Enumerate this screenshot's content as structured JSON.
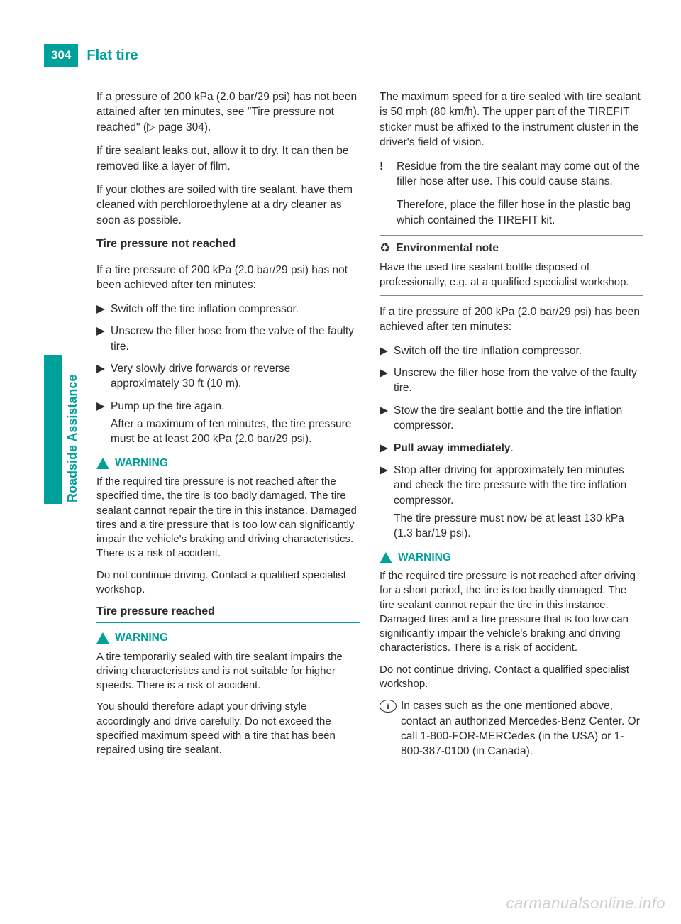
{
  "header": {
    "page_number": "304",
    "title": "Flat tire"
  },
  "side": {
    "label": "Roadside Assistance"
  },
  "left": {
    "p1": "If a pressure of 200 kPa (2.0 bar/29 psi) has not been attained after ten minutes, see \"Tire pressure not reached\" (▷ page 304).",
    "p2": "If tire sealant leaks out, allow it to dry. It can then be removed like a layer of film.",
    "p3": "If your clothes are soiled with tire sealant, have them cleaned with perchloroethylene at a dry cleaner as soon as possible.",
    "h1": "Tire pressure not reached",
    "p4": "If a tire pressure of 200 kPa (2.0 bar/29 psi) has not been achieved after ten minutes:",
    "s1": "Switch off the tire inflation compressor.",
    "s2": "Unscrew the filler hose from the valve of the faulty tire.",
    "s3": "Very slowly drive forwards or reverse approximately 30 ft (10 m).",
    "s4": "Pump up the tire again.",
    "s4b": "After a maximum of ten minutes, the tire pressure must be at least 200 kPa (2.0 bar/29 psi).",
    "warn1_label": "WARNING",
    "warn1_body1": "If the required tire pressure is not reached after the specified time, the tire is too badly damaged. The tire sealant cannot repair the tire in this instance. Damaged tires and a tire pressure that is too low can significantly impair the vehicle's braking and driving characteristics. There is a risk of accident.",
    "warn1_body2": "Do not continue driving. Contact a qualified specialist workshop.",
    "h2": "Tire pressure reached",
    "warn2_label": "WARNING",
    "warn2_body1": "A tire temporarily sealed with tire sealant impairs the driving characteristics and is not suitable for higher speeds. There is a risk of accident.",
    "warn2_body2": "You should therefore adapt your driving style accordingly and drive carefully. Do not exceed the specified maximum speed with a tire that has been repaired using tire sealant."
  },
  "right": {
    "p1": "The maximum speed for a tire sealed with tire sealant is 50 mph (80 km/h). The upper part of the TIREFIT sticker must be affixed to the instrument cluster in the driver's field of vision.",
    "notice1a": "Residue from the tire sealant may come out of the filler hose after use. This could cause stains.",
    "notice1b": "Therefore, place the filler hose in the plastic bag which contained the TIREFIT kit.",
    "env_label": "Environmental note",
    "env_body": "Have the used tire sealant bottle disposed of professionally, e.g. at a qualified specialist workshop.",
    "p2": "If a tire pressure of 200 kPa (2.0 bar/29 psi) has been achieved after ten minutes:",
    "s1": "Switch off the tire inflation compressor.",
    "s2": "Unscrew the filler hose from the valve of the faulty tire.",
    "s3": "Stow the tire sealant bottle and the tire inflation compressor.",
    "s4": "Pull away immediately",
    "s4dot": ".",
    "s5a": "Stop after driving for approximately ten minutes and check the tire pressure with the tire inflation compressor.",
    "s5b": "The tire pressure must now be at least 130 kPa (1.3 bar/19 psi).",
    "warn_label": "WARNING",
    "warn_body1": "If the required tire pressure is not reached after driving for a short period, the tire is too badly damaged. The tire sealant cannot repair the tire in this instance. Damaged tires and a tire pressure that is too low can significantly impair the vehicle's braking and driving characteristics. There is a risk of accident.",
    "warn_body2": "Do not continue driving. Contact a qualified specialist workshop.",
    "info": "In cases such as the one mentioned above, contact an authorized Mercedes-Benz Center. Or call 1-800-FOR-MERCedes (in the USA) or 1-800-387-0100 (in Canada)."
  },
  "markers": {
    "step": "▶",
    "bang": "!",
    "leaf": "♻",
    "info": "i"
  },
  "watermark": "carmanualsonline.info"
}
